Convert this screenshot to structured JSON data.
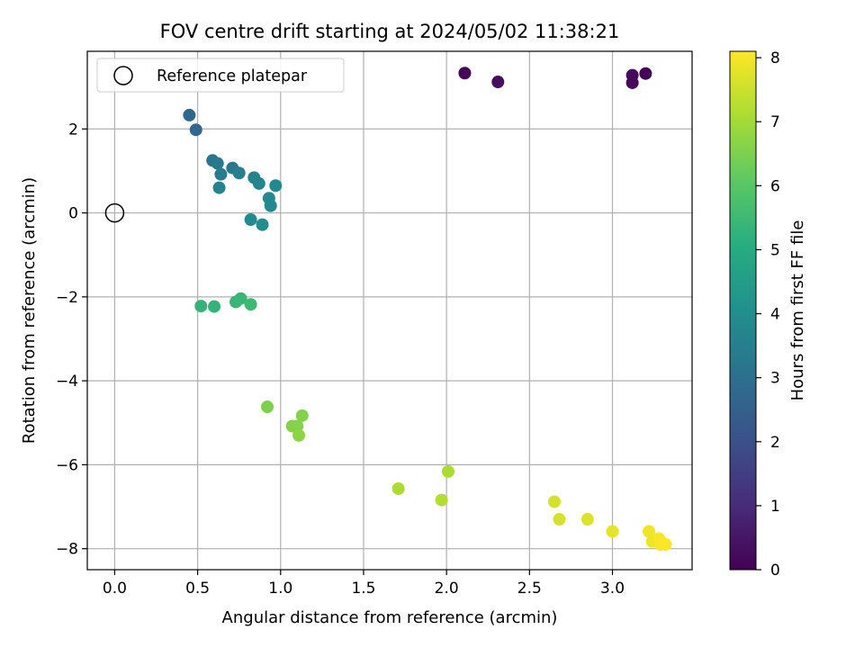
{
  "chart_data": {
    "type": "scatter",
    "title": "FOV centre drift starting at 2024/05/02 11:38:21",
    "xlabel": "Angular distance from reference (arcmin)",
    "ylabel": "Rotation from reference (arcmin)",
    "xlim": [
      -0.165,
      3.48
    ],
    "ylim": [
      -8.5,
      3.85
    ],
    "xticks": [
      0.0,
      0.5,
      1.0,
      1.5,
      2.0,
      2.5,
      3.0
    ],
    "xtick_labels": [
      "0.0",
      "0.5",
      "1.0",
      "1.5",
      "2.0",
      "2.5",
      "3.0"
    ],
    "yticks": [
      -8,
      -6,
      -4,
      -2,
      0,
      2
    ],
    "ytick_labels": [
      "−8",
      "−6",
      "−4",
      "−2",
      "0",
      "2"
    ],
    "grid": true,
    "legend": {
      "position": "top-left",
      "entries": [
        "Reference platepar"
      ]
    },
    "reference_point": {
      "x": 0.0,
      "y": 0.0,
      "label": "Reference platepar"
    },
    "colorbar": {
      "label": "Hours from first FF file",
      "range": [
        0,
        8.1
      ],
      "ticks": [
        0,
        1,
        2,
        3,
        4,
        5,
        6,
        7,
        8
      ],
      "tick_labels": [
        "0",
        "1",
        "2",
        "3",
        "4",
        "5",
        "6",
        "7",
        "8"
      ],
      "colormap": "viridis"
    },
    "points": [
      {
        "x": 2.11,
        "y": 3.33,
        "c": 0.1
      },
      {
        "x": 2.31,
        "y": 3.12,
        "c": 0.3
      },
      {
        "x": 3.12,
        "y": 3.28,
        "c": 0.2
      },
      {
        "x": 3.12,
        "y": 3.1,
        "c": 0.15
      },
      {
        "x": 3.2,
        "y": 3.32,
        "c": 0.05
      },
      {
        "x": 0.45,
        "y": 2.33,
        "c": 2.7
      },
      {
        "x": 0.49,
        "y": 1.98,
        "c": 2.8
      },
      {
        "x": 0.59,
        "y": 1.25,
        "c": 3.2
      },
      {
        "x": 0.62,
        "y": 1.18,
        "c": 3.3
      },
      {
        "x": 0.64,
        "y": 0.92,
        "c": 3.4
      },
      {
        "x": 0.71,
        "y": 1.07,
        "c": 3.3
      },
      {
        "x": 0.75,
        "y": 0.95,
        "c": 3.5
      },
      {
        "x": 0.63,
        "y": 0.6,
        "c": 3.6
      },
      {
        "x": 0.84,
        "y": 0.84,
        "c": 3.6
      },
      {
        "x": 0.87,
        "y": 0.7,
        "c": 3.7
      },
      {
        "x": 0.93,
        "y": 0.35,
        "c": 3.8
      },
      {
        "x": 0.94,
        "y": 0.17,
        "c": 3.8
      },
      {
        "x": 0.97,
        "y": 0.65,
        "c": 3.9
      },
      {
        "x": 0.82,
        "y": -0.16,
        "c": 3.9
      },
      {
        "x": 0.89,
        "y": -0.28,
        "c": 4.0
      },
      {
        "x": 0.52,
        "y": -2.22,
        "c": 5.3
      },
      {
        "x": 0.6,
        "y": -2.23,
        "c": 5.3
      },
      {
        "x": 0.73,
        "y": -2.12,
        "c": 5.4
      },
      {
        "x": 0.76,
        "y": -2.04,
        "c": 5.4
      },
      {
        "x": 0.82,
        "y": -2.18,
        "c": 5.5
      },
      {
        "x": 0.92,
        "y": -4.62,
        "c": 6.5
      },
      {
        "x": 1.07,
        "y": -5.08,
        "c": 6.6
      },
      {
        "x": 1.1,
        "y": -5.08,
        "c": 6.6
      },
      {
        "x": 1.11,
        "y": -5.3,
        "c": 6.7
      },
      {
        "x": 1.13,
        "y": -4.83,
        "c": 6.6
      },
      {
        "x": 1.71,
        "y": -6.57,
        "c": 7.1
      },
      {
        "x": 1.97,
        "y": -6.84,
        "c": 7.2
      },
      {
        "x": 2.01,
        "y": -6.16,
        "c": 7.1
      },
      {
        "x": 2.65,
        "y": -6.88,
        "c": 7.6
      },
      {
        "x": 2.68,
        "y": -7.3,
        "c": 7.6
      },
      {
        "x": 2.85,
        "y": -7.3,
        "c": 7.7
      },
      {
        "x": 3.0,
        "y": -7.59,
        "c": 7.8
      },
      {
        "x": 3.22,
        "y": -7.59,
        "c": 7.9
      },
      {
        "x": 3.24,
        "y": -7.83,
        "c": 7.9
      },
      {
        "x": 3.28,
        "y": -7.76,
        "c": 8.0
      },
      {
        "x": 3.29,
        "y": -7.9,
        "c": 8.05
      },
      {
        "x": 3.32,
        "y": -7.9,
        "c": 8.1
      }
    ]
  }
}
